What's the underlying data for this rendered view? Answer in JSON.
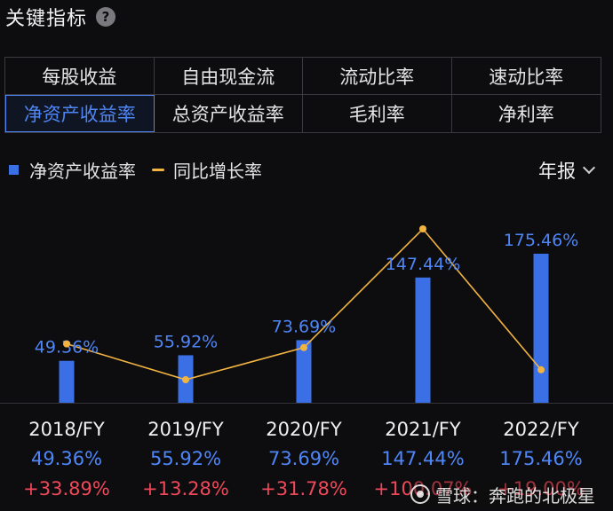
{
  "header": {
    "title": "关键指标",
    "help_icon": "?"
  },
  "tabs": [
    {
      "label": "每股收益",
      "active": false
    },
    {
      "label": "自由现金流",
      "active": false
    },
    {
      "label": "流动比率",
      "active": false
    },
    {
      "label": "速动比率",
      "active": false
    },
    {
      "label": "净资产收益率",
      "active": true
    },
    {
      "label": "总资产收益率",
      "active": false
    },
    {
      "label": "毛利率",
      "active": false
    },
    {
      "label": "净利率",
      "active": false
    }
  ],
  "period_selector": {
    "label": "年报"
  },
  "watermark": {
    "text": "雪球：奔跑的北极星"
  },
  "chart_data": {
    "type": "bar",
    "categories": [
      "2018/FY",
      "2019/FY",
      "2020/FY",
      "2021/FY",
      "2022/FY"
    ],
    "series": [
      {
        "name": "净资产收益率",
        "type": "bar",
        "color": "#3b6fe6",
        "values": [
          49.36,
          55.92,
          73.69,
          147.44,
          175.46
        ],
        "labels": [
          "49.36%",
          "55.92%",
          "73.69%",
          "147.44%",
          "175.46%"
        ]
      },
      {
        "name": "同比增长率",
        "type": "line",
        "color": "#f2b441",
        "values": [
          33.89,
          13.28,
          31.78,
          100.07,
          19.0
        ],
        "labels": [
          "+33.89%",
          "+13.28%",
          "+31.78%",
          "+100.07%",
          "+19.00%"
        ]
      }
    ],
    "legend_position": "top-left",
    "grid": false
  }
}
